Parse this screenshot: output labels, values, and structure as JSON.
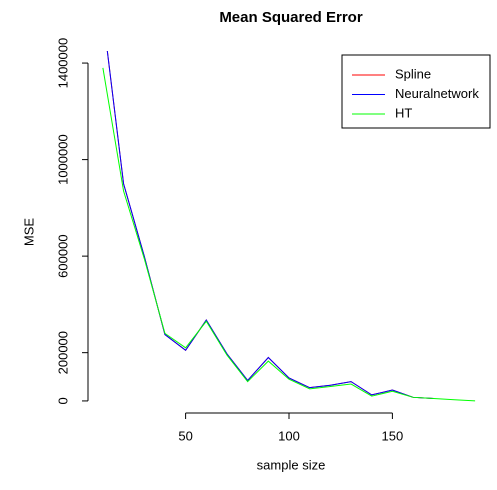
{
  "chart_data": {
    "type": "line",
    "title": "Mean Squared Error",
    "x_label": "sample size",
    "y_label": "MSE",
    "x": [
      10,
      20,
      30,
      40,
      50,
      60,
      70,
      80,
      90,
      100,
      110,
      120,
      130,
      140,
      150,
      160,
      170,
      180,
      190
    ],
    "series": [
      {
        "name": "Spline",
        "color": "#ff0000",
        "values": [
          1600000,
          900000,
          600000,
          275000,
          210000,
          335000,
          195000,
          85000,
          180000,
          95000,
          55000,
          65000,
          80000,
          25000,
          45000,
          15000,
          10000,
          null,
          null
        ]
      },
      {
        "name": "Neuralnetwork",
        "color": "#0000ff",
        "values": [
          1600000,
          900000,
          600000,
          275000,
          210000,
          335000,
          195000,
          85000,
          180000,
          95000,
          55000,
          65000,
          80000,
          25000,
          45000,
          15000,
          10000,
          null,
          null
        ]
      },
      {
        "name": "HT",
        "color": "#00ff00",
        "values": [
          1380000,
          870000,
          590000,
          280000,
          220000,
          330000,
          190000,
          80000,
          165000,
          90000,
          50000,
          60000,
          70000,
          20000,
          40000,
          15000,
          10000,
          5000,
          0
        ]
      }
    ],
    "xlim": [
      2.8,
      197.2
    ],
    "ylim": [
      -50000,
      1450000
    ],
    "xticks": [
      50,
      100,
      150
    ],
    "yticks": [
      0,
      200000,
      600000,
      1000000,
      1400000
    ],
    "legend": "top-right"
  }
}
